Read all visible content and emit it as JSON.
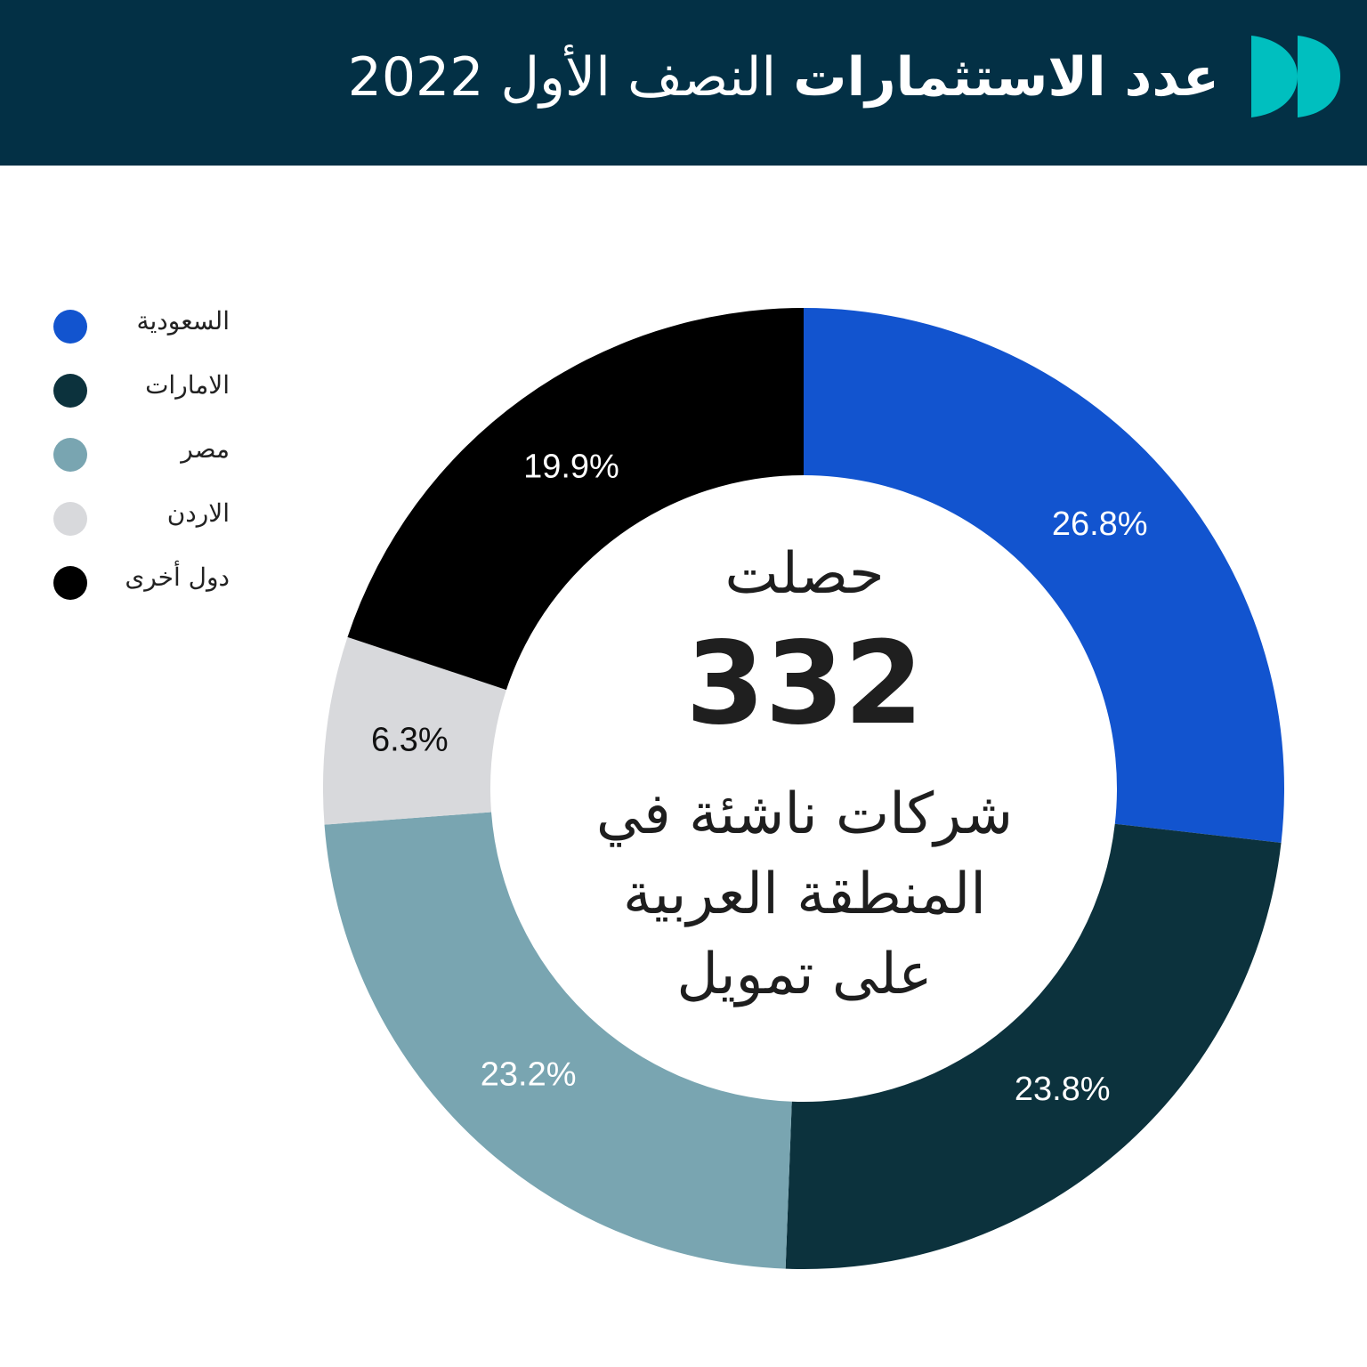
{
  "header": {
    "title_bold": "عدد الاستثمارات",
    "title_regular": "النصف الأول 2022",
    "bg_color": "#033045",
    "logo_color": "#00bfbf",
    "logo_icon": "double-leaf-logo"
  },
  "center": {
    "top_text": "حصلت",
    "number": "332",
    "bottom_lines": [
      "شركات ناشئة في",
      "المنطقة العربية",
      "على تمويل"
    ]
  },
  "legend": [
    {
      "label": "السعودية",
      "color": "#1254cf"
    },
    {
      "label": "الامارات",
      "color": "#0c323d"
    },
    {
      "label": "مصر",
      "color": "#79a5b1"
    },
    {
      "label": "الاردن",
      "color": "#d8d9dc"
    },
    {
      "label": "دول أخرى",
      "color": "#000000"
    }
  ],
  "chart_data": {
    "type": "pie",
    "variant": "donut",
    "title": "عدد الاستثمارات النصف الأول 2022",
    "total": 332,
    "categories": [
      "السعودية",
      "الامارات",
      "مصر",
      "الاردن",
      "دول أخرى"
    ],
    "values": [
      26.8,
      23.8,
      23.2,
      6.3,
      19.9
    ],
    "labels": [
      "26.8%",
      "23.8%",
      "23.2%",
      "6.3%",
      "19.9%"
    ],
    "colors": [
      "#1254cf",
      "#0c323d",
      "#79a5b1",
      "#d8d9dc",
      "#000000"
    ],
    "label_colors": [
      "#ffffff",
      "#ffffff",
      "#ffffff",
      "#111111",
      "#ffffff"
    ],
    "legend_position": "left",
    "start": "top",
    "direction": "clockwise"
  }
}
